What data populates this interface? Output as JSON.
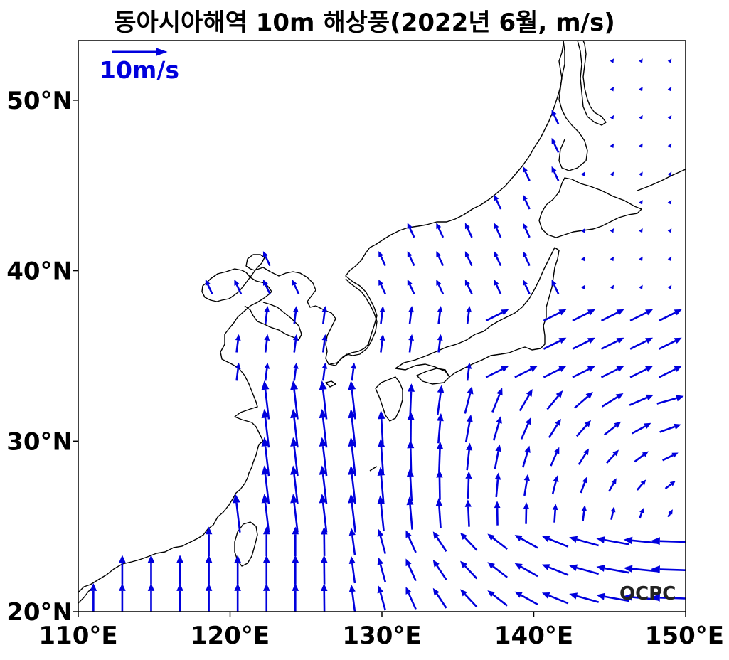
{
  "title": "동아시아해역 10m 해상풍(2022년 6월, m/s)",
  "reference_arrow": {
    "label": "10m/s",
    "speed": 10,
    "units": "m/s"
  },
  "watermark": "OCPC",
  "colors": {
    "arrow": "#0000dd",
    "coast": "#000000",
    "frame": "#000000"
  },
  "axes": {
    "xlim": [
      110,
      150
    ],
    "ylim": [
      20,
      53.5
    ],
    "xticks": [
      {
        "value": 110,
        "label": "110°E"
      },
      {
        "value": 120,
        "label": "120°E"
      },
      {
        "value": 130,
        "label": "130°E"
      },
      {
        "value": 140,
        "label": "140°E"
      },
      {
        "value": 150,
        "label": "150°E"
      }
    ],
    "yticks": [
      {
        "value": 20,
        "label": "20°N"
      },
      {
        "value": 30,
        "label": "30°N"
      },
      {
        "value": 40,
        "label": "40°N"
      },
      {
        "value": 50,
        "label": "50°N"
      }
    ]
  },
  "chart_data": {
    "type": "quiver",
    "title": "동아시아해역 10m 해상풍(2022년 6월, m/s)",
    "units": "m/s",
    "grid": {
      "lon_start": 111,
      "lon_step": 1.9,
      "lat_start": 20.8,
      "lat_step": 1.66
    },
    "land_mask_note": "vectors shown over ocean only",
    "sample_vectors": [
      {
        "lon": 113,
        "lat": 21,
        "u": 0,
        "v": 4
      },
      {
        "lon": 126,
        "lat": 30,
        "u": 0,
        "v": 9
      },
      {
        "lon": 130,
        "lat": 36,
        "u": 0,
        "v": 4
      },
      {
        "lon": 140,
        "lat": 22,
        "u": -7,
        "v": 0
      },
      {
        "lon": 148,
        "lat": 22,
        "u": -5,
        "v": 0
      },
      {
        "lon": 144,
        "lat": 34,
        "u": 4,
        "v": 2
      },
      {
        "lon": 145,
        "lat": 42,
        "u": 0,
        "v": 1
      },
      {
        "lon": 136,
        "lat": 46,
        "u": -2,
        "v": 2
      }
    ]
  }
}
